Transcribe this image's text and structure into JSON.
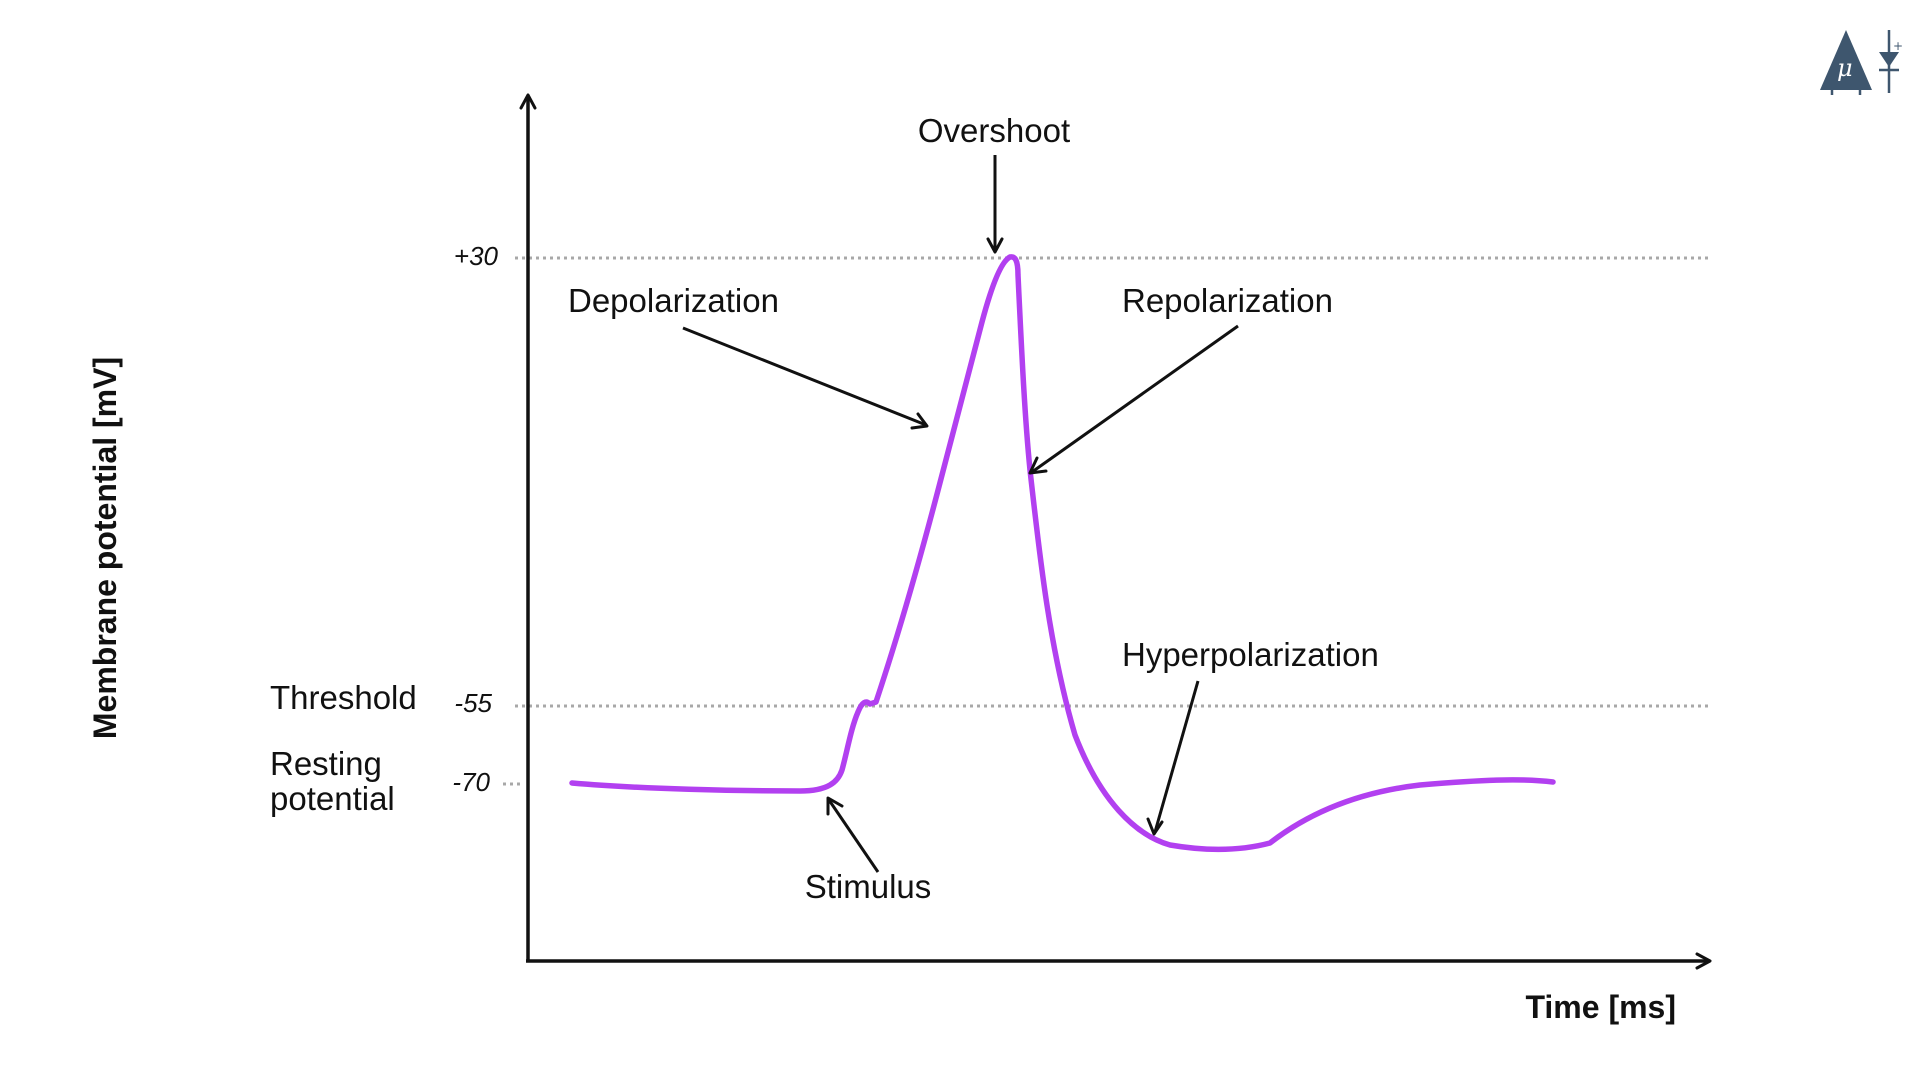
{
  "colors": {
    "curve": "#b240f0",
    "axis": "#111111",
    "guide": "#a8a8a8",
    "logo": "#3e566e"
  },
  "axes": {
    "ylabel": "Membrane potential [mV]",
    "xlabel": "Time [ms]"
  },
  "levels": [
    {
      "key": "overshoot",
      "value": 30,
      "tick": "+30"
    },
    {
      "key": "threshold",
      "value": -55,
      "tick": "-55",
      "label": "Threshold"
    },
    {
      "key": "resting",
      "value": -70,
      "tick": "-70",
      "label_lines": [
        "Resting",
        "potential"
      ]
    }
  ],
  "annotations": {
    "overshoot": "Overshoot",
    "depolarization": "Depolarization",
    "repolarization": "Repolarization",
    "hyperpolarization": "Hyperpolarization",
    "stimulus": "Stimulus"
  },
  "logo": {
    "icon": "neuron-and-diode-logo-icon"
  }
}
